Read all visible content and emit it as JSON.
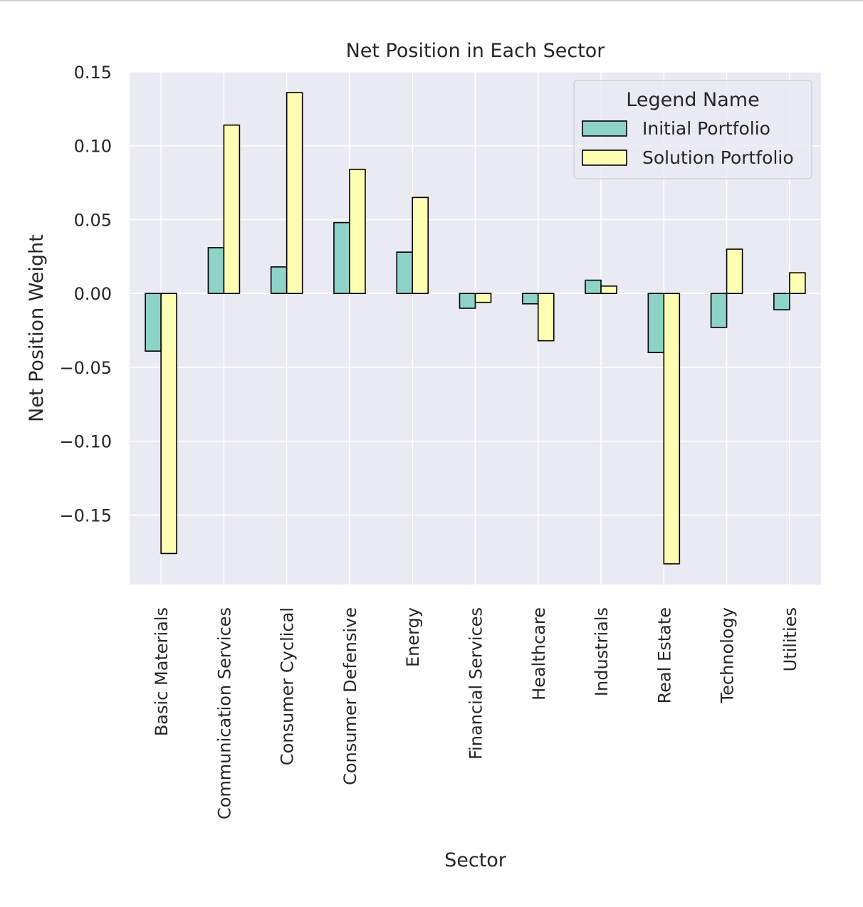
{
  "chart_data": {
    "type": "bar",
    "title": "Net Position in Each Sector",
    "xlabel": "Sector",
    "ylabel": "Net Position Weight",
    "categories": [
      "Basic Materials",
      "Communication Services",
      "Consumer Cyclical",
      "Consumer Defensive",
      "Energy",
      "Financial Services",
      "Healthcare",
      "Industrials",
      "Real Estate",
      "Technology",
      "Utilities"
    ],
    "series": [
      {
        "name": "Initial Portfolio",
        "color": "#8dd3c7",
        "values": [
          -0.039,
          0.031,
          0.018,
          0.048,
          0.028,
          -0.01,
          -0.007,
          0.009,
          -0.04,
          -0.023,
          -0.011
        ]
      },
      {
        "name": "Solution Portfolio",
        "color": "#ffffb3",
        "values": [
          -0.176,
          0.114,
          0.136,
          0.084,
          0.065,
          -0.006,
          -0.032,
          0.005,
          -0.183,
          0.03,
          0.014
        ]
      }
    ],
    "ylim": [
      -0.197,
      0.15
    ],
    "yticks": [
      0.15,
      0.1,
      0.05,
      0.0,
      -0.05,
      -0.1,
      -0.15
    ],
    "ytick_labels": [
      "0.15",
      "0.10",
      "0.05",
      "0.00",
      "−0.05",
      "−0.10",
      "−0.15"
    ],
    "legend": {
      "title": "Legend Name",
      "position": "top-right"
    },
    "grid": true,
    "background_color": "#eaeaf2",
    "grid_color": "#ffffff",
    "edge_color": "#000000"
  }
}
